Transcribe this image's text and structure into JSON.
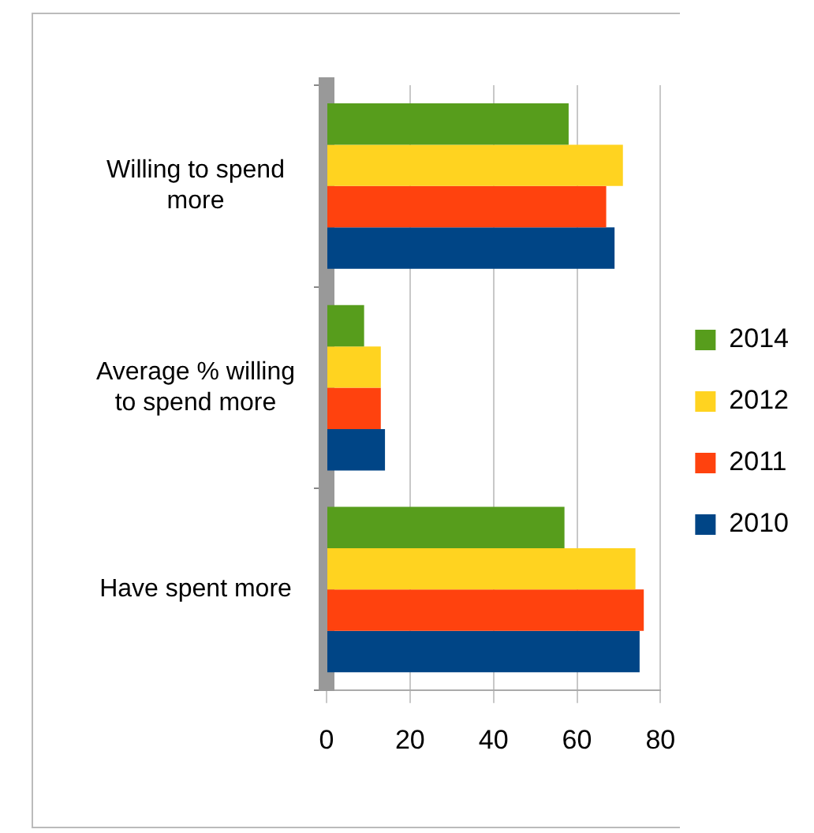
{
  "chart_data": {
    "type": "bar",
    "orientation": "horizontal",
    "categories": [
      "Willing to spend more",
      "Average % willing to spend more",
      "Have spent more"
    ],
    "series": [
      {
        "name": "2014",
        "color": "#579d1c",
        "values": [
          58,
          9,
          57
        ]
      },
      {
        "name": "2012",
        "color": "#ffd320",
        "values": [
          71,
          13,
          74
        ]
      },
      {
        "name": "2011",
        "color": "#ff420e",
        "values": [
          67,
          13,
          76
        ]
      },
      {
        "name": "2010",
        "color": "#004586",
        "values": [
          69,
          14,
          75
        ]
      }
    ],
    "xlim": [
      0,
      80
    ],
    "xticks": [
      0,
      20,
      40,
      60,
      80
    ],
    "grid": "x",
    "legend": "right"
  }
}
